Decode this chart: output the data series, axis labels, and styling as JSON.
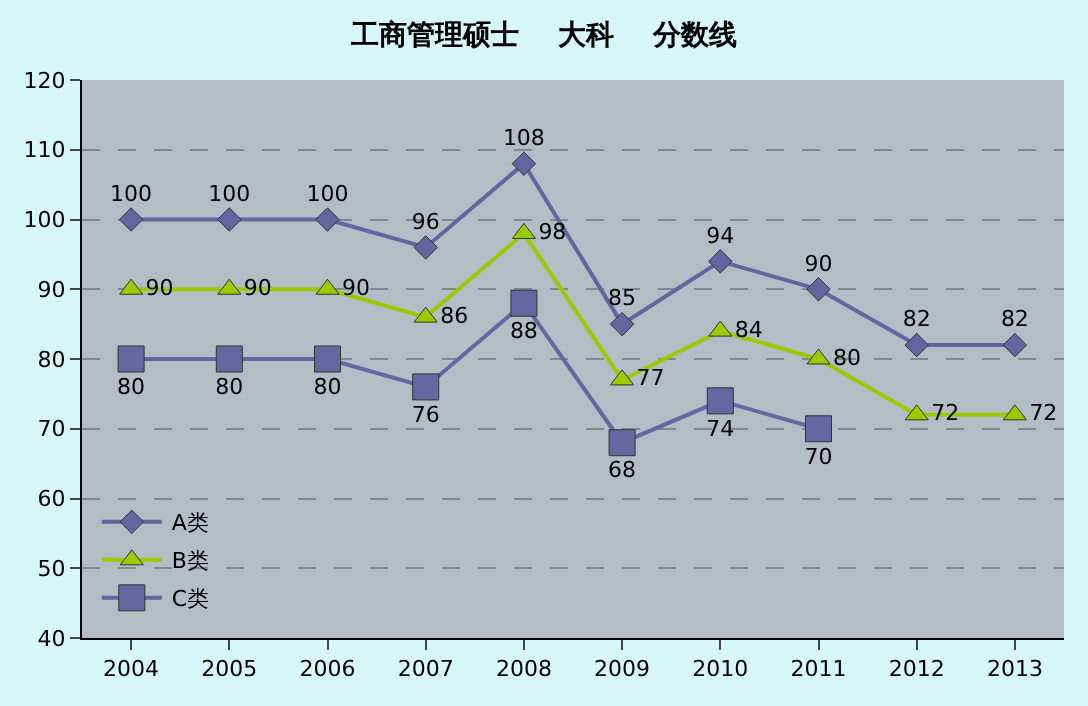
{
  "chart_data": {
    "type": "line",
    "title": "工商管理硕士    大科    分数线",
    "categories": [
      "2004",
      "2005",
      "2006",
      "2007",
      "2008",
      "2009",
      "2010",
      "2011",
      "2012",
      "2013"
    ],
    "series": [
      {
        "name": "A类",
        "color": "#6464a0",
        "marker": "diamond",
        "values": [
          100,
          100,
          100,
          96,
          108,
          85,
          94,
          90,
          82,
          82
        ]
      },
      {
        "name": "B类",
        "color": "#99cc00",
        "marker": "triangle",
        "values": [
          90,
          90,
          90,
          86,
          98,
          77,
          84,
          80,
          72,
          72
        ]
      },
      {
        "name": "C类",
        "color": "#6666a0",
        "marker": "square",
        "values": [
          80,
          80,
          80,
          76,
          88,
          68,
          74,
          70,
          null,
          null
        ]
      }
    ],
    "ylim": [
      40,
      120
    ],
    "yticks": [
      40,
      50,
      60,
      70,
      80,
      90,
      100,
      110,
      120
    ],
    "grid": "y",
    "legend": "bottom left",
    "data_labels": true,
    "line_style": "solid"
  }
}
